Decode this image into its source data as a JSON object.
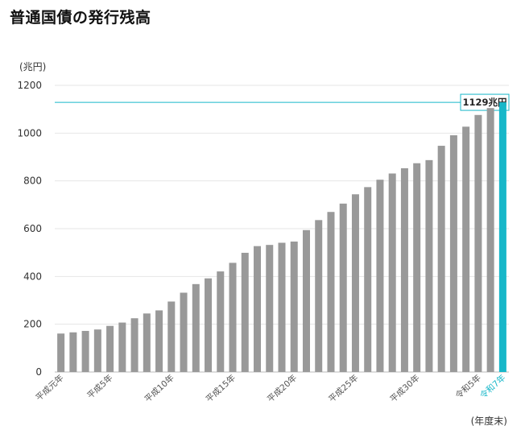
{
  "page": {
    "title": "普通国債の発行残高"
  },
  "chart_data": {
    "type": "bar",
    "title": "普通国債の発行残高",
    "ylabel": "(兆円)",
    "xlabel": "(年度末)",
    "ylim": [
      0,
      1200
    ],
    "yticks": [
      0,
      200,
      400,
      600,
      800,
      1000,
      1200
    ],
    "grid": true,
    "reference_line": {
      "value": 1129,
      "label": "1129兆円",
      "color": "#17b7c9"
    },
    "colors": {
      "bar": "#999999",
      "highlight": "#17b7c9",
      "grid": "#e6e6e6"
    },
    "highlight_index": 36,
    "categories": [
      "平成元年",
      "平成2年",
      "平成3年",
      "平成4年",
      "平成5年",
      "平成6年",
      "平成7年",
      "平成8年",
      "平成9年",
      "平成10年",
      "平成11年",
      "平成12年",
      "平成13年",
      "平成14年",
      "平成15年",
      "平成16年",
      "平成17年",
      "平成18年",
      "平成19年",
      "平成20年",
      "平成21年",
      "平成22年",
      "平成23年",
      "平成24年",
      "平成25年",
      "平成26年",
      "平成27年",
      "平成28年",
      "平成29年",
      "平成30年",
      "令和元年",
      "令和2年",
      "令和3年",
      "令和4年",
      "令和5年",
      "令和6年",
      "令和7年"
    ],
    "values": [
      161,
      166,
      172,
      178,
      193,
      207,
      225,
      245,
      258,
      295,
      332,
      368,
      392,
      421,
      457,
      499,
      527,
      532,
      541,
      546,
      594,
      636,
      670,
      705,
      744,
      774,
      805,
      831,
      853,
      874,
      887,
      947,
      991,
      1027,
      1076,
      1105,
      1129
    ],
    "tick_labels": [
      {
        "index": 0,
        "label": "平成元年"
      },
      {
        "index": 4,
        "label": "平成5年"
      },
      {
        "index": 9,
        "label": "平成10年"
      },
      {
        "index": 14,
        "label": "平成15年"
      },
      {
        "index": 19,
        "label": "平成20年"
      },
      {
        "index": 24,
        "label": "平成25年"
      },
      {
        "index": 29,
        "label": "平成30年"
      },
      {
        "index": 34,
        "label": "令和5年"
      },
      {
        "index": 36,
        "label": "令和7年"
      }
    ]
  }
}
